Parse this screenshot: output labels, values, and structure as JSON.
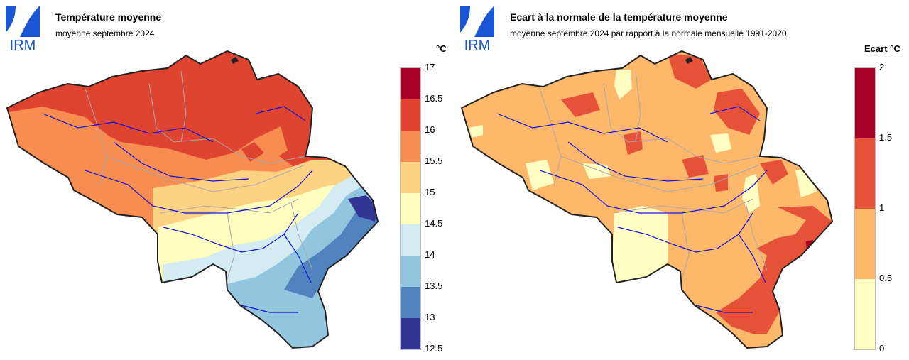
{
  "logo": {
    "text": "IRM",
    "color": "#1a56d6"
  },
  "left": {
    "title": "Température moyenne",
    "subtitle": "moyenne septembre 2024",
    "unit": "°C",
    "legend": {
      "ticks": [
        "17",
        "16.5",
        "16",
        "15.5",
        "15",
        "14.5",
        "14",
        "13.5",
        "13",
        "12.5"
      ],
      "colors": [
        "#a50026",
        "#de4430",
        "#f88d52",
        "#fdd283",
        "#fefebe",
        "#d4ebf2",
        "#92c5de",
        "#5183be",
        "#313695"
      ]
    }
  },
  "right": {
    "title": "Ecart à la normale de la température moyenne",
    "subtitle": "moyenne septembre 2024 par rapport à la normale mensuelle 1991-2020",
    "unit": "Ecart °C",
    "legend": {
      "ticks": [
        "2",
        "1.5",
        "1",
        "0.5",
        "0"
      ],
      "colors": [
        "#a50026",
        "#e65238",
        "#fdb86c",
        "#ffffc3"
      ]
    }
  },
  "map_colors": {
    "border": "#222222",
    "rivers": "#1414d8",
    "provinces": "#a8a8a8"
  }
}
